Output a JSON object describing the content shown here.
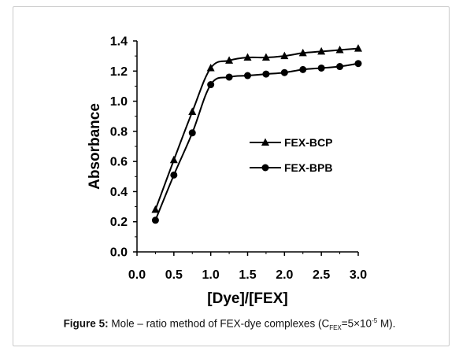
{
  "chart_data": {
    "type": "line",
    "xlabel": "[Dye]/[FEX]",
    "ylabel": "Absorbance",
    "xlim": [
      0.0,
      3.0
    ],
    "ylim": [
      0.0,
      1.4
    ],
    "xticks": [
      "0.0",
      "0.5",
      "1.0",
      "1.5",
      "2.0",
      "2.5",
      "3.0"
    ],
    "yticks": [
      "0.0",
      "0.2",
      "0.4",
      "0.6",
      "0.8",
      "1.0",
      "1.2",
      "1.4"
    ],
    "grid": false,
    "legend_position": "middle-right",
    "series": [
      {
        "name": "FEX-BCP",
        "marker": "triangle",
        "color": "#000000",
        "x": [
          0.25,
          0.5,
          0.75,
          1.0,
          1.25,
          1.5,
          1.75,
          2.0,
          2.25,
          2.5,
          2.75,
          3.0
        ],
        "y": [
          0.28,
          0.61,
          0.93,
          1.22,
          1.27,
          1.29,
          1.29,
          1.3,
          1.32,
          1.33,
          1.34,
          1.35
        ]
      },
      {
        "name": "FEX-BPB",
        "marker": "circle",
        "color": "#000000",
        "x": [
          0.25,
          0.5,
          0.75,
          1.0,
          1.25,
          1.5,
          1.75,
          2.0,
          2.25,
          2.5,
          2.75,
          3.0
        ],
        "y": [
          0.21,
          0.51,
          0.79,
          1.11,
          1.16,
          1.17,
          1.18,
          1.19,
          1.21,
          1.22,
          1.23,
          1.25
        ]
      }
    ]
  },
  "caption": {
    "label": "Figure 5:",
    "text_main": " Mole – ratio method of FEX-dye complexes (C",
    "sub": "FEX",
    "text_eq": "=5×10",
    "sup": "-5",
    "text_end": " M)."
  }
}
